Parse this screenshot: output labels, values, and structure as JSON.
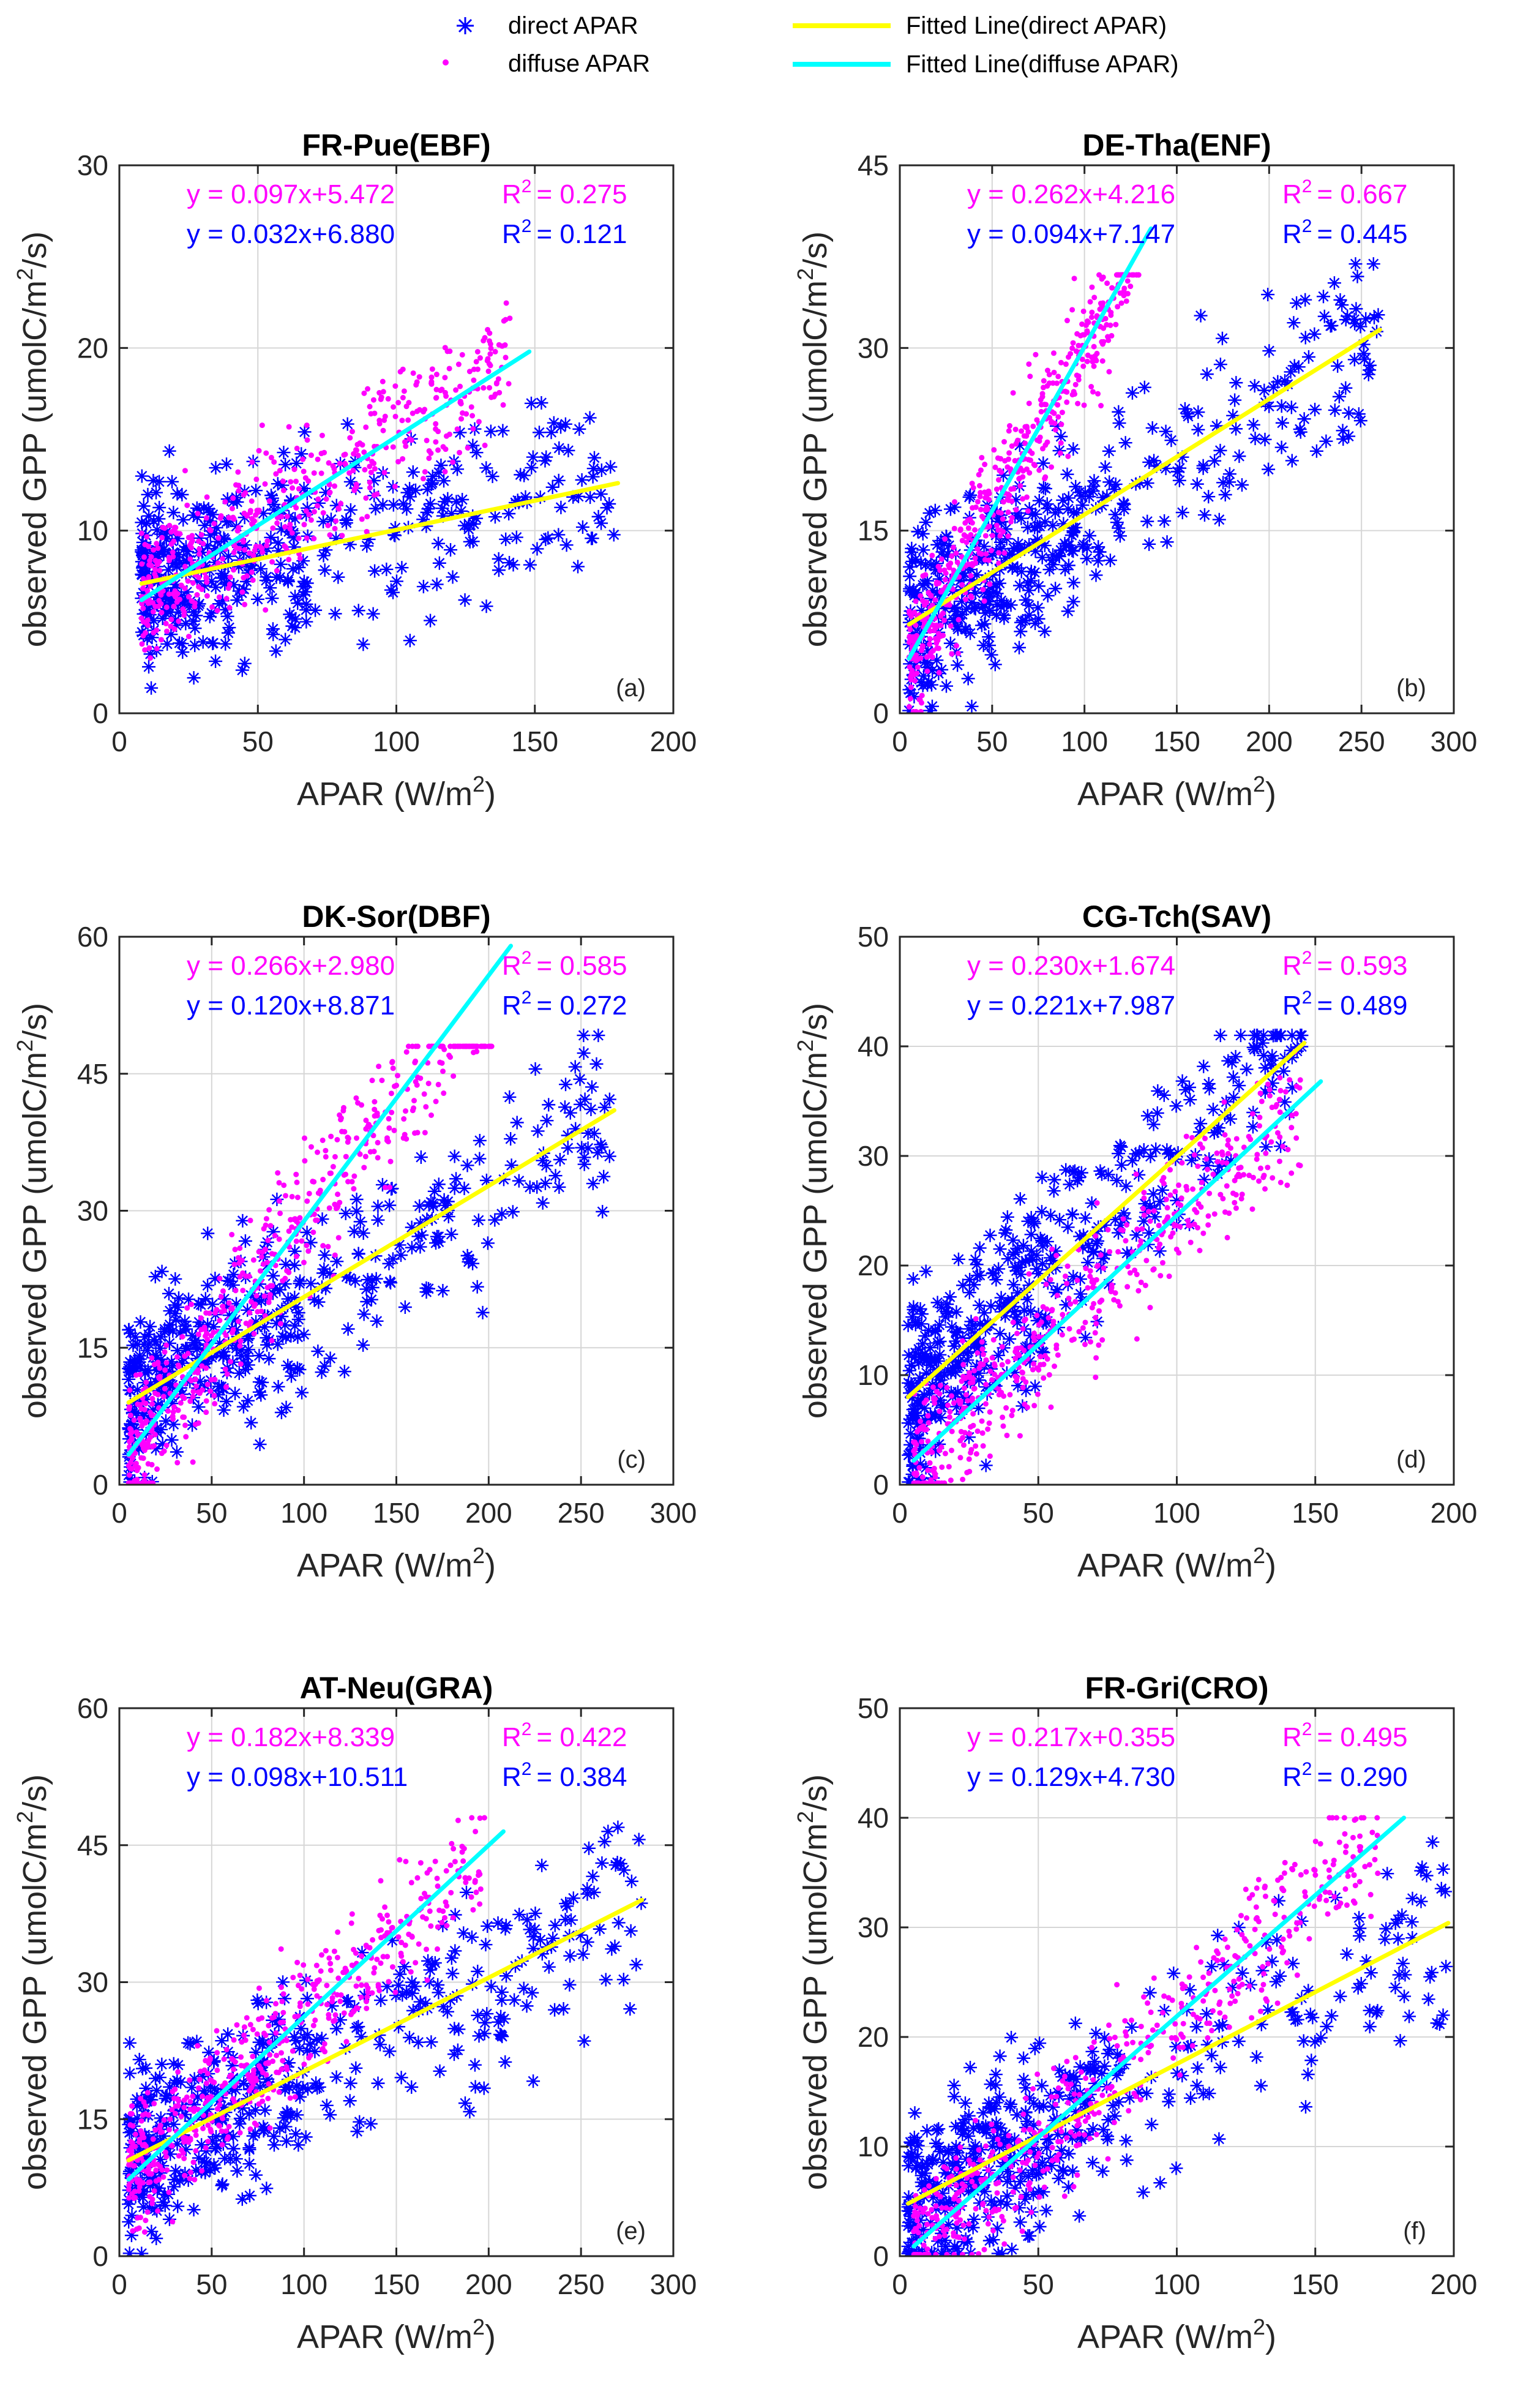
{
  "legend": {
    "items": [
      {
        "label": "direct APAR",
        "marker": "asterisk",
        "color": "#0000ff"
      },
      {
        "label": "diffuse APAR",
        "marker": "dot",
        "color": "#ff00ff"
      },
      {
        "label": "Fitted Line(direct APAR)",
        "marker": "line",
        "color": "#ffff00"
      },
      {
        "label": "Fitted Line(diffuse APAR)",
        "marker": "line",
        "color": "#00ffff"
      }
    ]
  },
  "colors": {
    "direct": "#0000ff",
    "diffuse": "#ff00ff",
    "fit_direct": "#ffff00",
    "fit_diffuse": "#00ffff"
  },
  "chart_data": [
    {
      "type": "scatter",
      "title": "FR-Pue(EBF)",
      "panel_label": "(a)",
      "xlabel_main": "APAR (W/m",
      "xlabel_sup": "2",
      "xlabel_end": ")",
      "ylabel_main": "observed GPP (umolC/m",
      "ylabel_sup": "2",
      "ylabel_end": "/s)",
      "xlim": [
        0,
        200
      ],
      "ylim": [
        0,
        30
      ],
      "xticks": [
        "0",
        "50",
        "100",
        "150",
        "200"
      ],
      "yticks": [
        "0",
        "10",
        "20",
        "30"
      ],
      "eq_diffuse": "y = 0.097x+5.472",
      "r2_diffuse": "= 0.275",
      "eq_direct": "y = 0.032x+6.880",
      "r2_direct": "= 0.121",
      "r2_label": "R",
      "r2_sup": "2",
      "fit_direct": {
        "x": [
          8,
          180
        ],
        "y": [
          7.1,
          12.6
        ]
      },
      "fit_diffuse": {
        "x": [
          8,
          148
        ],
        "y": [
          6.2,
          19.8
        ]
      },
      "grid": true
    },
    {
      "type": "scatter",
      "title": "DE-Tha(ENF)",
      "panel_label": "(b)",
      "xlabel_main": "APAR (W/m",
      "xlabel_sup": "2",
      "xlabel_end": ")",
      "ylabel_main": "observed GPP (umolC/m",
      "ylabel_sup": "2",
      "ylabel_end": "/s)",
      "xlim": [
        0,
        300
      ],
      "ylim": [
        0,
        45
      ],
      "xticks": [
        "0",
        "50",
        "100",
        "150",
        "200",
        "250",
        "300"
      ],
      "yticks": [
        "0",
        "15",
        "30",
        "45"
      ],
      "eq_diffuse": "y = 0.262x+4.216",
      "r2_diffuse": "= 0.667",
      "eq_direct": "y = 0.094x+7.147",
      "r2_direct": "= 0.445",
      "r2_label": "R",
      "r2_sup": "2",
      "fit_direct": {
        "x": [
          5,
          260
        ],
        "y": [
          7.3,
          31.5
        ]
      },
      "fit_diffuse": {
        "x": [
          5,
          136
        ],
        "y": [
          4.5,
          39.8
        ]
      },
      "grid": true
    },
    {
      "type": "scatter",
      "title": "DK-Sor(DBF)",
      "panel_label": "(c)",
      "xlabel_main": "APAR (W/m",
      "xlabel_sup": "2",
      "xlabel_end": ")",
      "ylabel_main": "observed GPP (umolC/m",
      "ylabel_sup": "2",
      "ylabel_end": "/s)",
      "xlim": [
        0,
        300
      ],
      "ylim": [
        0,
        60
      ],
      "xticks": [
        "0",
        "50",
        "100",
        "150",
        "200",
        "250",
        "300"
      ],
      "yticks": [
        "0",
        "15",
        "30",
        "45",
        "60"
      ],
      "eq_diffuse": "y = 0.266x+2.980",
      "r2_diffuse": "= 0.585",
      "eq_direct": "y = 0.120x+8.871",
      "r2_direct": "= 0.272",
      "r2_label": "R",
      "r2_sup": "2",
      "fit_direct": {
        "x": [
          5,
          268
        ],
        "y": [
          9.0,
          41.0
        ]
      },
      "fit_diffuse": {
        "x": [
          5,
          212
        ],
        "y": [
          3.3,
          59.0
        ]
      },
      "grid": true
    },
    {
      "type": "scatter",
      "title": "CG-Tch(SAV)",
      "panel_label": "(d)",
      "xlabel_main": "APAR (W/m",
      "xlabel_sup": "2",
      "xlabel_end": ")",
      "ylabel_main": "observed GPP (umolC/m",
      "ylabel_sup": "2",
      "ylabel_end": "/s)",
      "xlim": [
        0,
        200
      ],
      "ylim": [
        0,
        50
      ],
      "xticks": [
        "0",
        "50",
        "100",
        "150",
        "200"
      ],
      "yticks": [
        "0",
        "10",
        "20",
        "30",
        "40",
        "50"
      ],
      "eq_diffuse": "y = 0.230x+1.674",
      "r2_diffuse": "= 0.593",
      "eq_direct": "y = 0.221x+7.987",
      "r2_direct": "= 0.489",
      "r2_label": "R",
      "r2_sup": "2",
      "fit_direct": {
        "x": [
          3,
          146
        ],
        "y": [
          8.0,
          40.3
        ]
      },
      "fit_diffuse": {
        "x": [
          5,
          152
        ],
        "y": [
          2.2,
          36.8
        ]
      },
      "grid": true
    },
    {
      "type": "scatter",
      "title": "AT-Neu(GRA)",
      "panel_label": "(e)",
      "xlabel_main": "APAR (W/m",
      "xlabel_sup": "2",
      "xlabel_end": ")",
      "ylabel_main": "observed GPP (umolC/m",
      "ylabel_sup": "2",
      "ylabel_end": "/s)",
      "xlim": [
        0,
        300
      ],
      "ylim": [
        0,
        60
      ],
      "xticks": [
        "0",
        "50",
        "100",
        "150",
        "200",
        "250",
        "300"
      ],
      "yticks": [
        "0",
        "15",
        "30",
        "45",
        "60"
      ],
      "eq_diffuse": "y = 0.182x+8.339",
      "r2_diffuse": "= 0.422",
      "eq_direct": "y = 0.098x+10.511",
      "r2_direct": "= 0.384",
      "r2_label": "R",
      "r2_sup": "2",
      "fit_direct": {
        "x": [
          5,
          283
        ],
        "y": [
          10.5,
          39.0
        ]
      },
      "fit_diffuse": {
        "x": [
          5,
          208
        ],
        "y": [
          8.4,
          46.5
        ]
      },
      "grid": true
    },
    {
      "type": "scatter",
      "title": "FR-Gri(CRO)",
      "panel_label": "(f)",
      "xlabel_main": "APAR (W/m",
      "xlabel_sup": "2",
      "xlabel_end": ")",
      "ylabel_main": "observed GPP (umolC/m",
      "ylabel_sup": "2",
      "ylabel_end": "/s)",
      "xlim": [
        0,
        200
      ],
      "ylim": [
        0,
        50
      ],
      "xticks": [
        "0",
        "50",
        "100",
        "150",
        "200"
      ],
      "yticks": [
        "0",
        "10",
        "20",
        "30",
        "40",
        "50"
      ],
      "eq_diffuse": "y = 0.217x+0.355",
      "r2_diffuse": "= 0.495",
      "eq_direct": "y = 0.129x+4.730",
      "r2_direct": "= 0.290",
      "r2_label": "R",
      "r2_sup": "2",
      "fit_direct": {
        "x": [
          3,
          198
        ],
        "y": [
          4.8,
          30.4
        ]
      },
      "fit_diffuse": {
        "x": [
          5,
          182
        ],
        "y": [
          0.9,
          40.0
        ]
      },
      "grid": true
    }
  ]
}
